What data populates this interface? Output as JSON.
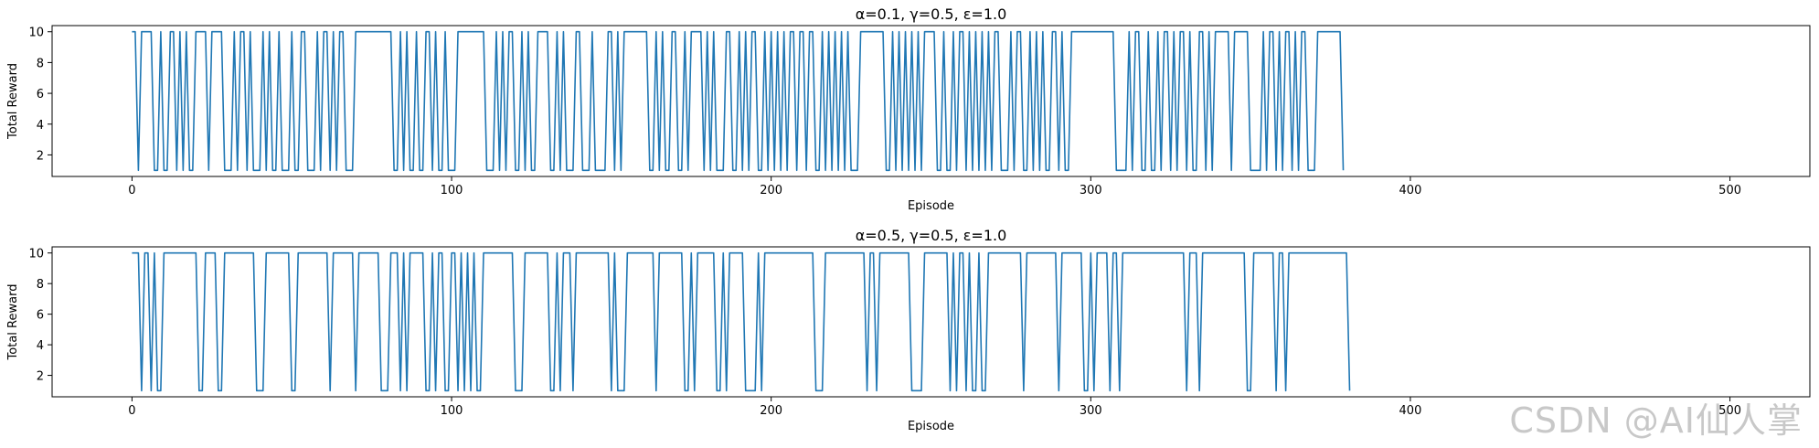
{
  "watermark": "CSDN @AI仙人掌",
  "colors": {
    "line": "#1f77b4",
    "axis": "#000000"
  },
  "chart_data": [
    {
      "type": "line",
      "title": "α=0.1, γ=0.5, ε=1.0",
      "xlabel": "Episode",
      "ylabel": "Total Reward",
      "xlim": [
        -25,
        525
      ],
      "ylim": [
        0.6,
        10.4
      ],
      "xticks": [
        0,
        100,
        200,
        300,
        400,
        500
      ],
      "yticks": [
        2,
        4,
        6,
        8,
        10
      ],
      "grid": false,
      "series": [
        {
          "x_start": 0,
          "y_encoding": "one character per episode: H = 10, L = 1",
          "pattern": "HHLHHHHLLHLLHHLHLHLLHHHHLHHHHLLLHLHHLHLLLHLHLLHLLLHLLHHLLLHLHHLHLHHLLLHHHHHHHHHHHHLLHLHLLHLLHHLHLLHLLLHHHHHHHHHLLLHLHLHHLLHLHLLHHHHLLHLHLLLHHLLLHLLLLHHLHLHHHHHHHHLLHLHLLHHLLHLHHHHLHLHLLLHHLLHLHLHHLLHLHLHLHLHHLHHLHHLLHLHLHLHLHLLLHHHHHHHHLLHLHLHLHLHLHHHHLLHLLHLHHLHLHLHLHLHHLLLHLHHLLHLHLHLLHHLHLLHHHHHHHHHHHHHHLLLLHLHHLLHLLHLHHLHLHHLHLLHHLHLHHHHHLHHHHHLLLLHLHHLHLHHLHLHHLLLHHHHHHHHL",
          "pattern_covers_episodes": "0-499"
        }
      ]
    },
    {
      "type": "line",
      "title": "α=0.5, γ=0.5, ε=1.0",
      "xlabel": "Episode",
      "ylabel": "Total Reward",
      "xlim": [
        -25,
        525
      ],
      "ylim": [
        0.6,
        10.4
      ],
      "xticks": [
        0,
        100,
        200,
        300,
        400,
        500
      ],
      "yticks": [
        2,
        4,
        6,
        8,
        10
      ],
      "grid": false,
      "series": [
        {
          "x_start": 0,
          "y_encoding": "one character per episode: H = 10, L = 1",
          "pattern": "HHHLHHLHLLHHHHHHHHHHHLLHHHHLLHHHHHHHHHHLLLHHHHHHHHLLHHHHHHHHHHLHHHHHHHLHHHHHHHLLLHHHLHLHHHHHLLHLHHLLHHLHLHLHLLHHHHHHHHHHLLLHHHHHHHHLLHLHHHLHHHHHHHHHHHLHLLLHHHHHHHHHLHHHHHHHHLLHLHHHHHHLLHLHHHHHLLLLHLHHHHHHHHHHHHHHHHLLLHHHHHHHHHHHHHLHHLHHHHHHHHHHLLLLHHHHHHHHLHLHHLHLLHLLHHHHHHHHHHHLHHHHHHHHHHLHHHHHHHLLHLHHHHLHHLHHHHHHHHHHHHHHHHHHHHLHHHLHHHHHHHHHHHHHHLLHHHHHHHLHHLHHHHHHHHHHHHHHHHHHHL",
          "pattern_covers_episodes": "0-499"
        }
      ]
    }
  ]
}
